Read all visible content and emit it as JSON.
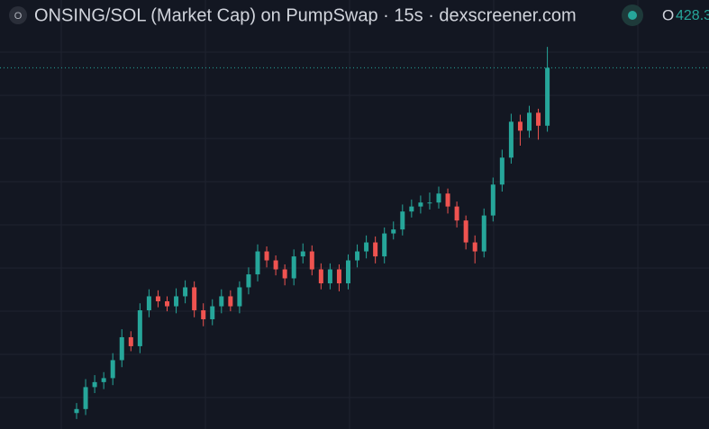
{
  "chart_data": {
    "type": "candlestick",
    "title": "ONSING/SOL (Market Cap) on PumpSwap · 15s · dexscreener.com",
    "legend_icon": "O",
    "open_label": "O",
    "open_value": 428.3,
    "up_color": "#26a69a",
    "down_color": "#ef5350",
    "ylim": [
      60,
      490
    ],
    "open": [
      76,
      80,
      102,
      107,
      111,
      129,
      152,
      143,
      179,
      193,
      188,
      183,
      193,
      202,
      179,
      170,
      183,
      193,
      183,
      202,
      215,
      238,
      229,
      220,
      211,
      233,
      238,
      220,
      206,
      220,
      206,
      229,
      238,
      247,
      233,
      256,
      260,
      278,
      283,
      287,
      287,
      296,
      283,
      269,
      247,
      238,
      274,
      305,
      332,
      368,
      359,
      377,
      364
    ],
    "high": [
      86,
      110,
      114,
      117,
      136,
      160,
      158,
      186,
      200,
      199,
      193,
      201,
      209,
      208,
      186,
      190,
      200,
      199,
      208,
      222,
      245,
      243,
      234,
      225,
      240,
      246,
      244,
      226,
      226,
      225,
      235,
      245,
      254,
      253,
      262,
      268,
      285,
      290,
      294,
      297,
      303,
      301,
      288,
      274,
      254,
      281,
      312,
      340,
      376,
      375,
      384,
      381,
      443
    ],
    "low": [
      70,
      74,
      96,
      100,
      104,
      122,
      138,
      136,
      172,
      182,
      178,
      176,
      186,
      172,
      163,
      164,
      176,
      178,
      176,
      195,
      208,
      222,
      214,
      204,
      204,
      226,
      214,
      200,
      200,
      198,
      200,
      222,
      231,
      226,
      226,
      250,
      254,
      272,
      276,
      280,
      281,
      276,
      262,
      240,
      226,
      232,
      268,
      298,
      326,
      344,
      352,
      350,
      358
    ],
    "close": [
      80,
      102,
      107,
      111,
      129,
      152,
      143,
      179,
      193,
      188,
      183,
      193,
      202,
      179,
      170,
      183,
      193,
      183,
      202,
      215,
      238,
      229,
      220,
      211,
      233,
      238,
      220,
      206,
      220,
      206,
      229,
      238,
      247,
      233,
      256,
      260,
      278,
      283,
      287,
      287,
      296,
      283,
      269,
      247,
      238,
      274,
      305,
      332,
      368,
      359,
      377,
      364,
      422
    ]
  }
}
